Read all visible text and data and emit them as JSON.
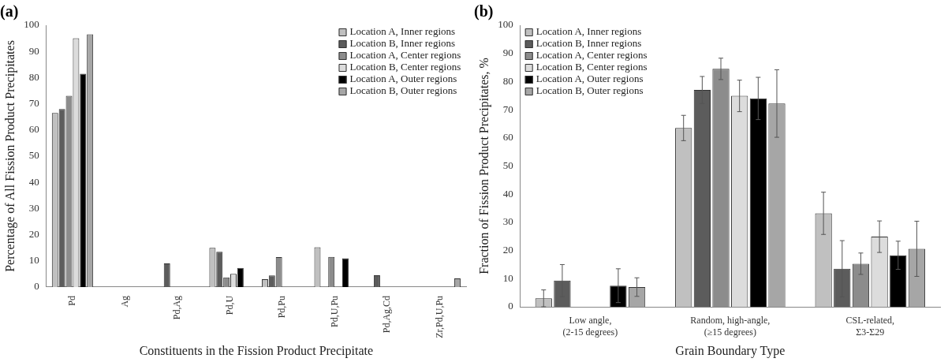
{
  "chart_data": [
    {
      "type": "bar",
      "title": "(a)",
      "xlabel": "Constituents in the Fission Product Precipitate",
      "ylabel": "Percentage of All Fission Product Precipitates",
      "categories": [
        "Pd",
        "Ag",
        "Pd,Ag",
        "Pd,U",
        "Pd,Pu",
        "Pd,U,Pu",
        "Pd,Ag,Cd",
        "Zr,Pd,U,Pu"
      ],
      "series": [
        {
          "name": "Location A, Inner regions",
          "color": "#c0c0c0",
          "values": [
            66.5,
            0,
            0,
            15,
            3,
            15.2,
            0,
            0
          ]
        },
        {
          "name": "Location B, Inner regions",
          "color": "#5c5c5c",
          "values": [
            68,
            0,
            9,
            13.5,
            4.4,
            0,
            4.5,
            0
          ]
        },
        {
          "name": "Location A, Center regions",
          "color": "#8c8c8c",
          "values": [
            73,
            0,
            0,
            3.7,
            11.4,
            11.5,
            0,
            0
          ]
        },
        {
          "name": "Location B, Center regions",
          "color": "#dcdcdc",
          "values": [
            95,
            0,
            0,
            5,
            0,
            0,
            0,
            0
          ]
        },
        {
          "name": "Location A, Outer regions",
          "color": "#000000",
          "values": [
            81.5,
            0,
            0,
            7.3,
            0,
            11,
            0,
            0
          ]
        },
        {
          "name": "Location B, Outer regions",
          "color": "#a6a6a6",
          "values": [
            96.5,
            0,
            0,
            0,
            0,
            0,
            0,
            3.3
          ]
        }
      ],
      "ylim": [
        0,
        100
      ],
      "yticks": [
        0,
        10,
        20,
        30,
        40,
        50,
        60,
        70,
        80,
        90,
        100
      ],
      "legend": "top right"
    },
    {
      "type": "bar",
      "title": "(b)",
      "xlabel": "Grain Boundary Type",
      "ylabel": "Fraction of Fission Product Precipitates, %",
      "categories": [
        "Low angle,\n(2-15 degrees)",
        "Random, high-angle,\n(≥15 degrees)",
        "CSL-related,\nΣ3-Σ29"
      ],
      "series": [
        {
          "name": "Location A, Inner regions",
          "color": "#c0c0c0",
          "values": [
            3,
            63.5,
            33.2
          ],
          "errors": [
            3,
            4.5,
            7.5
          ]
        },
        {
          "name": "Location B, Inner regions",
          "color": "#5c5c5c",
          "values": [
            9.3,
            77,
            13.5
          ],
          "errors": [
            5.7,
            4.8,
            10
          ]
        },
        {
          "name": "Location A, Center regions",
          "color": "#8c8c8c",
          "values": [
            0,
            84.5,
            15.3
          ],
          "errors": [
            null,
            3.8,
            3.8
          ]
        },
        {
          "name": "Location B, Center regions",
          "color": "#dcdcdc",
          "values": [
            0,
            74.9,
            24.9
          ],
          "errors": [
            null,
            5.6,
            5.6
          ]
        },
        {
          "name": "Location A, Outer regions",
          "color": "#000000",
          "values": [
            7.5,
            74,
            18.3
          ],
          "errors": [
            6,
            7.5,
            5
          ]
        },
        {
          "name": "Location B, Outer regions",
          "color": "#a6a6a6",
          "values": [
            7,
            72.2,
            20.6
          ],
          "errors": [
            3.3,
            12,
            9.8
          ]
        }
      ],
      "ylim": [
        0,
        100
      ],
      "yticks": [
        0,
        10,
        20,
        30,
        40,
        50,
        60,
        70,
        80,
        90,
        100
      ],
      "legend": "top left"
    }
  ]
}
